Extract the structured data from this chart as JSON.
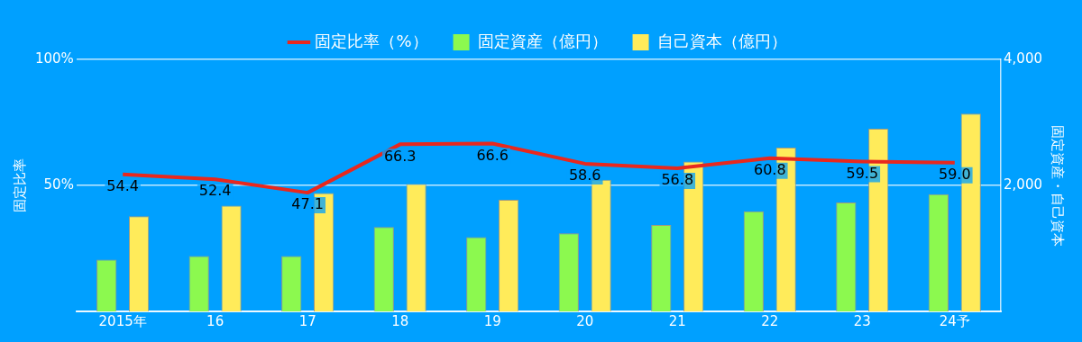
{
  "chart_data": {
    "type": "bar",
    "categories": [
      "2015年",
      "16",
      "17",
      "18",
      "19",
      "20",
      "21",
      "22",
      "23",
      "24予"
    ],
    "series": [
      {
        "name": "固定比率（%）",
        "type": "line",
        "axis": "y",
        "color": "#e8281e",
        "values": [
          54.4,
          52.4,
          47.1,
          66.3,
          66.6,
          58.6,
          56.8,
          60.8,
          59.5,
          59.0
        ],
        "value_labels": [
          "54.4",
          "52.4",
          "47.1",
          "66.3",
          "66.6",
          "58.6",
          "56.8",
          "60.8",
          "59.5",
          "59.0"
        ]
      },
      {
        "name": "固定資産（億円）",
        "axis": "y2",
        "color": "#8cf94f",
        "values": [
          820,
          880,
          880,
          1340,
          1180,
          1240,
          1370,
          1590,
          1730,
          1860
        ]
      },
      {
        "name": "自己資本（億円）",
        "axis": "y2",
        "color": "#ffeb5a",
        "values": [
          1510,
          1680,
          1880,
          2020,
          1770,
          2090,
          2380,
          2600,
          2900,
          3140
        ]
      }
    ],
    "ylabel": "固定比率",
    "y2label": "固定資産・自己資本",
    "ylim": [
      0,
      100
    ],
    "yticks": [
      {
        "value": 0,
        "label": null
      },
      {
        "value": 50,
        "label": "50%"
      },
      {
        "value": 100,
        "label": "100%"
      }
    ],
    "y2lim": [
      0,
      4000
    ],
    "y2ticks": [
      {
        "value": 0,
        "label": null
      },
      {
        "value": 2000,
        "label": "2,000"
      },
      {
        "value": 4000,
        "label": "4,000"
      }
    ],
    "grid": "y",
    "legend": "top",
    "marker": "none"
  }
}
